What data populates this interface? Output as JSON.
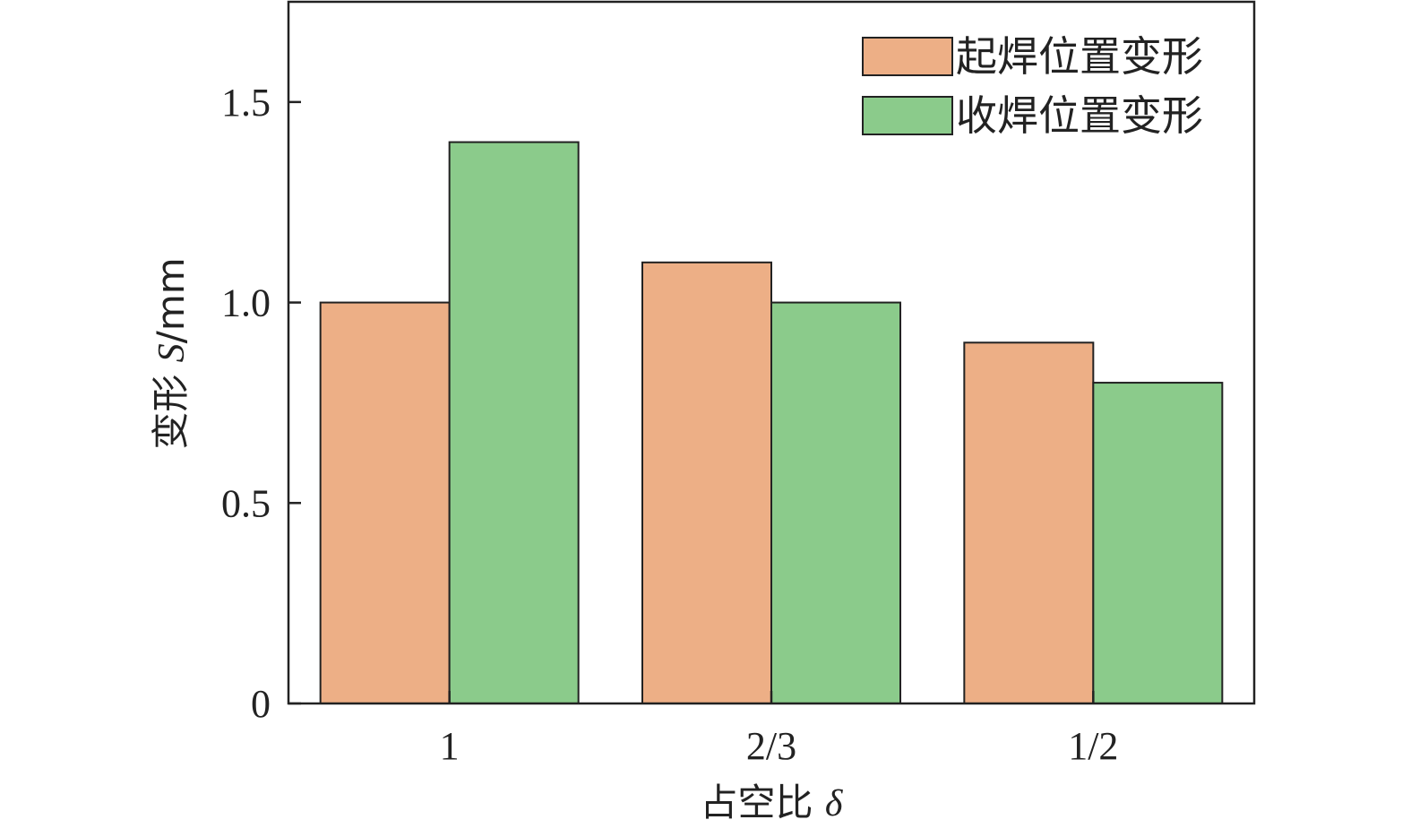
{
  "chart_data": {
    "type": "bar",
    "categories": [
      "1",
      "2/3",
      "1/2"
    ],
    "series": [
      {
        "name": "起焊位置变形",
        "values": [
          1.0,
          1.1,
          0.9
        ],
        "color": "#EDAF86"
      },
      {
        "name": "收焊位置变形",
        "values": [
          1.4,
          1.0,
          0.8
        ],
        "color": "#8BCB8B"
      }
    ],
    "xlabel": {
      "text": "占空比 ",
      "symbol": "δ"
    },
    "ylabel": {
      "text": "变形 ",
      "symbol": "S",
      "unit": "/mm"
    },
    "ylim": [
      0,
      1.75
    ],
    "yticks": [
      0,
      0.5,
      1.0,
      1.5
    ],
    "ytick_labels": [
      "0",
      "0.5",
      "1.0",
      "1.5"
    ],
    "grid": false,
    "legend_position": "top-right"
  }
}
